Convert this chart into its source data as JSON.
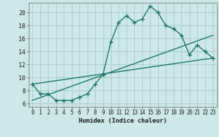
{
  "xlabel": "Humidex (Indice chaleur)",
  "bg_color": "#cce8e8",
  "line_color": "#1a7068",
  "grid_color": "#aacccc",
  "xlim": [
    -0.5,
    23.5
  ],
  "ylim": [
    5.5,
    21.5
  ],
  "xticks": [
    0,
    1,
    2,
    3,
    4,
    5,
    6,
    7,
    8,
    9,
    10,
    11,
    12,
    13,
    14,
    15,
    16,
    17,
    18,
    19,
    20,
    21,
    22,
    23
  ],
  "yticks": [
    6,
    8,
    10,
    12,
    14,
    16,
    18,
    20
  ],
  "main_line_x": [
    0,
    1,
    2,
    3,
    4,
    5,
    6,
    7,
    8,
    9,
    10,
    11,
    12,
    13,
    14,
    15,
    16,
    17,
    18,
    19,
    20,
    21,
    22,
    23
  ],
  "main_line_y": [
    9.0,
    7.5,
    7.5,
    6.5,
    6.5,
    6.5,
    7.0,
    7.5,
    9.0,
    10.5,
    15.5,
    18.5,
    19.5,
    18.5,
    19.0,
    21.0,
    20.0,
    18.0,
    17.5,
    16.5,
    13.5,
    15.0,
    14.0,
    13.0
  ],
  "line2_x": [
    0,
    23
  ],
  "line2_y": [
    9.0,
    13.0
  ],
  "line3_x": [
    0,
    23
  ],
  "line3_y": [
    6.5,
    16.5
  ],
  "marker": "+",
  "markersize": 4,
  "linewidth": 1.0,
  "xlabel_fontsize": 6.5,
  "tick_fontsize": 5.5
}
